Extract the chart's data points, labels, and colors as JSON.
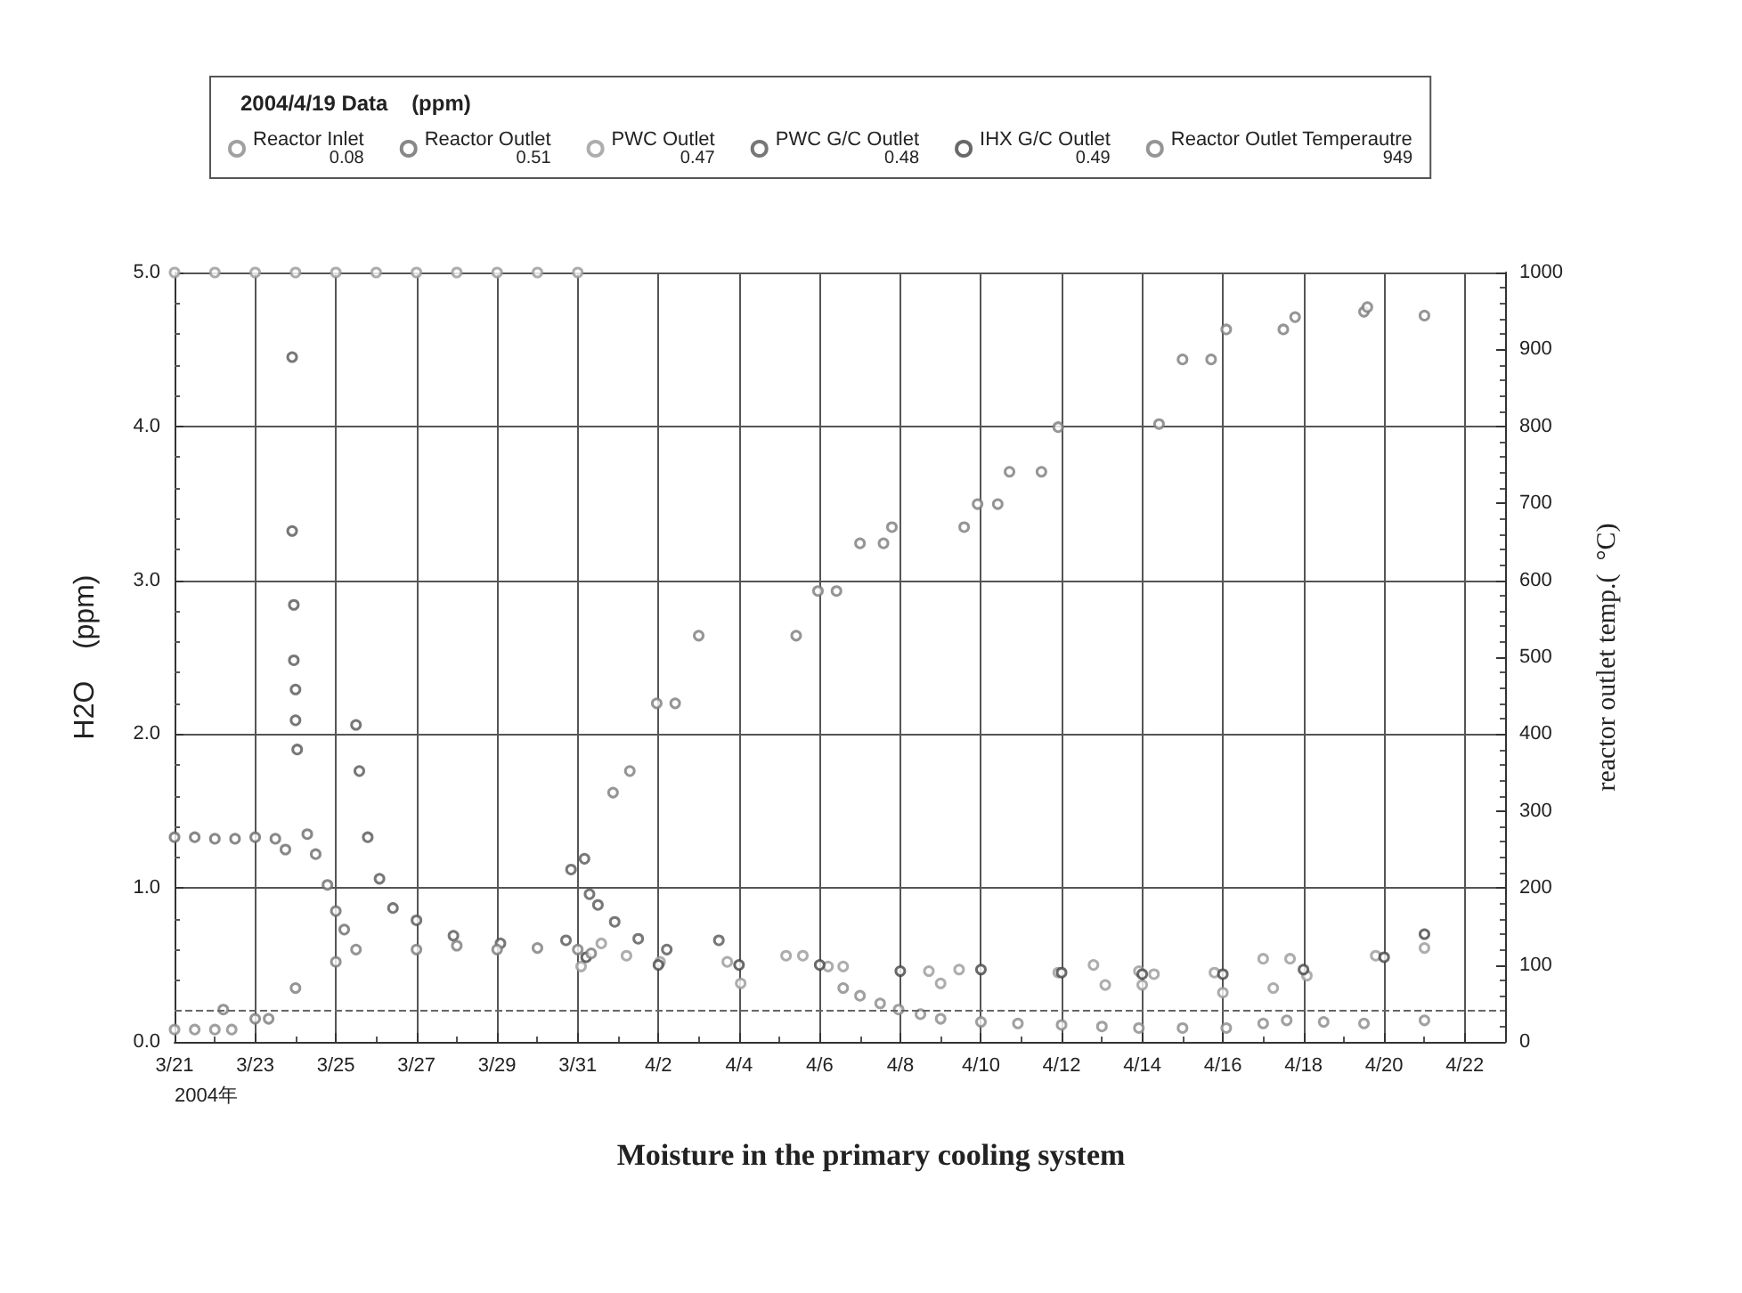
{
  "chart_data": {
    "type": "scatter",
    "title": "Moisture in the primary cooling system",
    "xlabel": null,
    "ylabel": "H2O    (ppm)",
    "y2label": "reactor outlet temp.(  °C)",
    "legend_title": "2004/4/19 Data    (ppm)",
    "legend": "top",
    "grid": true,
    "marker": "circle",
    "annotations": [
      "0.08",
      "0.51",
      "0.47",
      "0.48",
      "0.49",
      "949",
      "2004年"
    ],
    "xlim": [
      "2004-03-21",
      "2004-04-23"
    ],
    "xticks": [
      {
        "value": "2004-03-21",
        "label": "3/21"
      },
      {
        "value": "2004-03-23",
        "label": "3/23"
      },
      {
        "value": "2004-03-25",
        "label": "3/25"
      },
      {
        "value": "2004-03-27",
        "label": "3/27"
      },
      {
        "value": "2004-03-29",
        "label": "3/29"
      },
      {
        "value": "2004-03-31",
        "label": "3/31"
      },
      {
        "value": "2004-04-02",
        "label": "4/2"
      },
      {
        "value": "2004-04-04",
        "label": "4/4"
      },
      {
        "value": "2004-04-06",
        "label": "4/6"
      },
      {
        "value": "2004-04-08",
        "label": "4/8"
      },
      {
        "value": "2004-04-10",
        "label": "4/10"
      },
      {
        "value": "2004-04-12",
        "label": "4/12"
      },
      {
        "value": "2004-04-14",
        "label": "4/14"
      },
      {
        "value": "2004-04-16",
        "label": "4/16"
      },
      {
        "value": "2004-04-18",
        "label": "4/18"
      },
      {
        "value": "2004-04-20",
        "label": "4/20"
      },
      {
        "value": "2004-04-22",
        "label": "4/22"
      }
    ],
    "ylim": [
      0,
      5
    ],
    "yticks": [
      {
        "value": 0,
        "label": "0.0"
      },
      {
        "value": 1,
        "label": "1.0"
      },
      {
        "value": 2,
        "label": "2.0"
      },
      {
        "value": 3,
        "label": "3.0"
      },
      {
        "value": 4,
        "label": "4.0"
      },
      {
        "value": 5,
        "label": "5.0"
      }
    ],
    "y2lim": [
      0,
      1000
    ],
    "y2ticks": [
      0,
      100,
      200,
      300,
      400,
      500,
      600,
      700,
      800,
      900,
      1000
    ],
    "ref_lines": [
      {
        "axis": "y",
        "value": 0.2,
        "line_style": "dashed",
        "color": "#666666"
      }
    ],
    "series": [
      {
        "name": "Reactor Inlet",
        "color": "#888888",
        "x": [
          "2004-03-21T00:00",
          "2004-03-21T12:00",
          "2004-03-22T00:00",
          "2004-03-22T10:00",
          "2004-04-06T14:00",
          "2004-04-07T00:00",
          "2004-04-07T12:00",
          "2004-04-07T23:00",
          "2004-04-08T12:00",
          "2004-04-09T00:00",
          "2004-04-10T00:00",
          "2004-04-10T22:00",
          "2004-04-12T00:00",
          "2004-04-13T00:00",
          "2004-04-13T22:00",
          "2004-04-15T00:00",
          "2004-04-16T02:00",
          "2004-04-17T00:00",
          "2004-04-17T14:00",
          "2004-04-18T12:00",
          "2004-04-19T12:00",
          "2004-04-21T00:00"
        ],
        "values": [
          0.08,
          0.08,
          0.08,
          0.08,
          0.35,
          0.3,
          0.25,
          0.21,
          0.18,
          0.15,
          0.13,
          0.12,
          0.11,
          0.1,
          0.09,
          0.09,
          0.09,
          0.12,
          0.14,
          0.13,
          0.12,
          0.14
        ]
      },
      {
        "name": "Reactor Outlet",
        "color": "#6a6a6a",
        "x": [
          "2004-03-21T00:00",
          "2004-03-21T12:00",
          "2004-03-22T00:00",
          "2004-03-22T12:00",
          "2004-03-23T00:00",
          "2004-03-23T12:00",
          "2004-03-23T18:00",
          "2004-03-24T07:00",
          "2004-03-24T12:00",
          "2004-03-24T19:00",
          "2004-03-25T00:00",
          "2004-03-25T05:00"
        ],
        "values": [
          1.33,
          1.33,
          1.32,
          1.32,
          1.33,
          1.32,
          1.25,
          1.35,
          1.22,
          1.02,
          0.85,
          0.73
        ]
      },
      {
        "name": "PWC Outlet",
        "color": "#999999",
        "x": [
          "2004-03-21T00:00",
          "2004-03-22T00:00",
          "2004-03-23T00:00",
          "2004-03-24T00:00",
          "2004-03-25T00:00",
          "2004-03-26T00:00",
          "2004-03-27T00:00",
          "2004-03-28T00:00",
          "2004-03-29T00:00",
          "2004-03-30T00:00",
          "2004-03-31T00:00",
          "2004-03-31T02:00",
          "2004-03-31T14:00",
          "2004-04-01T05:00",
          "2004-04-02T01:00",
          "2004-04-03T17:00",
          "2004-04-04T01:00",
          "2004-04-05T04:00",
          "2004-04-05T14:00",
          "2004-04-06T05:00",
          "2004-04-06T14:00",
          "2004-04-08T17:00",
          "2004-04-09T00:00",
          "2004-04-09T11:00",
          "2004-04-11T22:00",
          "2004-04-12T19:00",
          "2004-04-13T02:00",
          "2004-04-13T22:00",
          "2004-04-14T00:00",
          "2004-04-14T07:00",
          "2004-04-15T19:00",
          "2004-04-16T00:00",
          "2004-04-17T00:00",
          "2004-04-17T06:00",
          "2004-04-17T16:00",
          "2004-04-18T02:00",
          "2004-04-19T19:00",
          "2004-04-21T00:00"
        ],
        "values": [
          5,
          5,
          5,
          5,
          5,
          5,
          5,
          5,
          5,
          5,
          5,
          0.49,
          0.64,
          0.56,
          0.52,
          0.52,
          0.38,
          0.56,
          0.56,
          0.49,
          0.49,
          0.46,
          0.38,
          0.47,
          0.45,
          0.5,
          0.37,
          0.46,
          0.37,
          0.44,
          0.45,
          0.32,
          0.54,
          0.35,
          0.54,
          0.43,
          0.56,
          0.61
        ]
      },
      {
        "name": "PWC G/C Outlet",
        "color": "#555555",
        "x": [
          "2004-03-23T22:00",
          "2004-03-23T22:00",
          "2004-03-23T23:00",
          "2004-03-23T23:00",
          "2004-03-24T00:00",
          "2004-03-24T00:00",
          "2004-03-24T01:00",
          "2004-03-25T12:00",
          "2004-03-25T14:00",
          "2004-03-25T19:00",
          "2004-03-26T02:00",
          "2004-03-26T10:00",
          "2004-03-27T00:00",
          "2004-03-27T22:00",
          "2004-03-29T02:00",
          "2004-03-30T17:00",
          "2004-03-30T20:00",
          "2004-03-31T04:00",
          "2004-03-31T07:00",
          "2004-03-31T12:00",
          "2004-03-31T22:00",
          "2004-04-01T12:00",
          "2004-04-02T05:00",
          "2004-04-03T12:00"
        ],
        "values": [
          4.45,
          3.32,
          2.84,
          2.48,
          2.29,
          2.09,
          1.9,
          2.06,
          1.76,
          1.33,
          1.06,
          0.87,
          0.79,
          0.69,
          0.64,
          0.66,
          1.12,
          1.19,
          0.96,
          0.89,
          0.78,
          0.67,
          0.6,
          0.66
        ]
      },
      {
        "name": "IHX G/C Outlet",
        "color": "#444444",
        "x": [
          "2004-03-31T05:00",
          "2004-04-02T00:00",
          "2004-04-04T00:00",
          "2004-04-06T00:00",
          "2004-04-08T00:00",
          "2004-04-10T00:00",
          "2004-04-12T00:00",
          "2004-04-14T00:00",
          "2004-04-16T00:00",
          "2004-04-18T00:00",
          "2004-04-20T00:00",
          "2004-04-21T00:00"
        ],
        "values": [
          0.55,
          0.5,
          0.5,
          0.5,
          0.46,
          0.47,
          0.45,
          0.44,
          0.44,
          0.47,
          0.55,
          0.7
        ]
      },
      {
        "name": "Reactor Outlet Temperautre",
        "color": "#7a7a7a",
        "axis": "y2",
        "x": [
          "2004-03-22T05:00",
          "2004-03-23T00:00",
          "2004-03-23T08:00",
          "2004-03-24T00:00",
          "2004-03-25T00:00",
          "2004-03-25T12:00",
          "2004-03-27T00:00",
          "2004-03-28T00:00",
          "2004-03-29T00:00",
          "2004-03-30T00:00",
          "2004-03-31T00:00",
          "2004-03-31T08:00",
          "2004-03-31T21:00",
          "2004-04-01T07:00",
          "2004-04-01T23:00",
          "2004-04-02T10:00",
          "2004-04-03T00:00",
          "2004-04-05T10:00",
          "2004-04-05T23:00",
          "2004-04-06T10:00",
          "2004-04-07T00:00",
          "2004-04-07T14:00",
          "2004-04-07T19:00",
          "2004-04-09T14:00",
          "2004-04-09T22:00",
          "2004-04-10T10:00",
          "2004-04-10T17:00",
          "2004-04-11T12:00",
          "2004-04-11T22:00",
          "2004-04-14T10:00",
          "2004-04-15T00:00",
          "2004-04-15T17:00",
          "2004-04-16T02:00",
          "2004-04-17T12:00",
          "2004-04-17T19:00",
          "2004-04-19T12:00",
          "2004-04-19T14:00",
          "2004-04-21T00:00"
        ],
        "values": [
          42,
          30,
          30,
          70,
          104,
          120,
          120,
          125,
          120,
          122,
          120,
          115,
          324,
          352,
          440,
          440,
          528,
          528,
          586,
          586,
          648,
          648,
          669,
          669,
          699,
          699,
          741,
          741,
          799,
          803,
          887,
          887,
          926,
          926,
          942,
          949,
          955,
          944
        ]
      }
    ]
  }
}
